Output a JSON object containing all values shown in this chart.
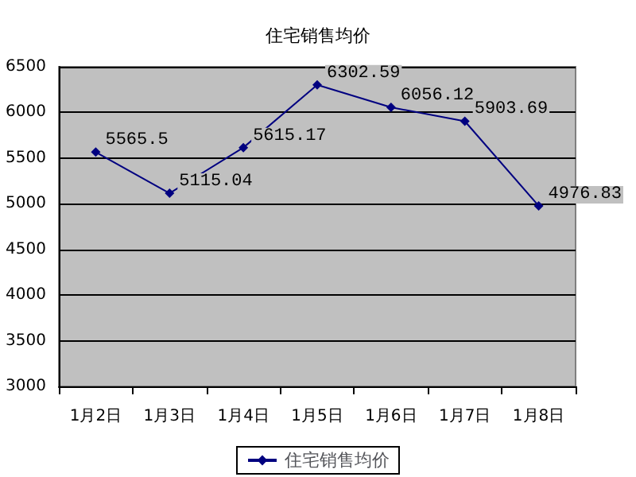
{
  "chart_data": {
    "type": "line",
    "title": "住宅销售均价",
    "categories": [
      "1月2日",
      "1月3日",
      "1月4日",
      "1月5日",
      "1月6日",
      "1月7日",
      "1月8日"
    ],
    "series": [
      {
        "name": "住宅销售均价",
        "color": "#000080",
        "values": [
          5565.5,
          5115.04,
          5615.17,
          6302.59,
          6056.12,
          5903.69,
          4976.83
        ]
      }
    ],
    "ylim": [
      3000,
      6500
    ],
    "yticks": [
      3000,
      3500,
      4000,
      4500,
      5000,
      5500,
      6000,
      6500
    ],
    "grid": "y",
    "legend": "bottom",
    "marker": "diamond",
    "line_style": "solid",
    "data_labels": true
  }
}
